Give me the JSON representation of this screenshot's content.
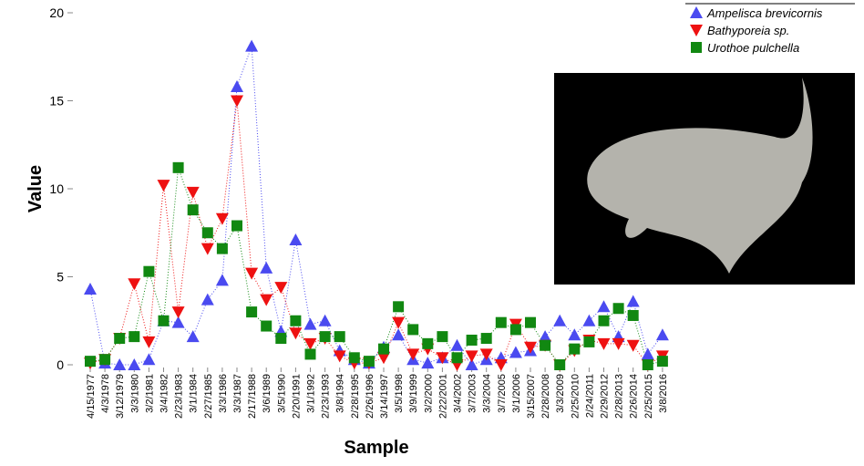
{
  "chart_data": {
    "type": "line",
    "x_label": "Sample",
    "y_label": "Value",
    "categories": [
      "4/15/1977",
      "4/3/1978",
      "3/12/1979",
      "3/3/1980",
      "3/2/1981",
      "3/4/1982",
      "2/23/1983",
      "3/1/1984",
      "2/27/1985",
      "3/3/1986",
      "3/3/1987",
      "2/17/1988",
      "3/6/1989",
      "3/5/1990",
      "2/20/1991",
      "3/1/1992",
      "2/23/1993",
      "3/8/1994",
      "2/28/1995",
      "2/26/1996",
      "3/14/1997",
      "3/5/1998",
      "3/9/1999",
      "3/2/2000",
      "2/22/2001",
      "3/4/2002",
      "3/7/2003",
      "3/3/2004",
      "3/7/2005",
      "3/1/2006",
      "3/15/2007",
      "2/28/2008",
      "3/3/2009",
      "2/25/2010",
      "2/24/2011",
      "2/29/2012",
      "2/28/2013",
      "2/26/2014",
      "2/25/2015",
      "3/8/2016"
    ],
    "series": [
      {
        "name": "Ampelisca brevicornis",
        "color": "#4a4af0",
        "marker": "triangle-up",
        "values": [
          4.3,
          0.1,
          0,
          0,
          0.3,
          2.5,
          2.4,
          1.6,
          3.7,
          4.8,
          15.8,
          18.1,
          5.5,
          1.9,
          7.1,
          2.3,
          2.5,
          0.8,
          0.3,
          0.1,
          1.0,
          1.7,
          0.3,
          0.1,
          0.4,
          1.1,
          0,
          0.3,
          0.4,
          0.7,
          0.8,
          1.6,
          2.5,
          1.7,
          2.5,
          3.3,
          1.6,
          3.6,
          0.6,
          1.7
        ]
      },
      {
        "name": "Bathyporeia sp.",
        "color": "#ee1111",
        "marker": "triangle-down",
        "values": [
          0.1,
          0.3,
          1.5,
          4.6,
          1.3,
          10.2,
          3.0,
          9.8,
          6.6,
          8.3,
          15.0,
          5.2,
          3.7,
          4.4,
          1.8,
          1.2,
          1.5,
          0.5,
          0.1,
          0.1,
          0.4,
          2.4,
          0.6,
          0.9,
          0.4,
          0,
          0.5,
          0.6,
          0,
          2.3,
          1.0,
          1.1,
          0,
          0.8,
          1.4,
          1.2,
          1.2,
          1.1,
          0,
          0.5
        ]
      },
      {
        "name": "Urothoe pulchella",
        "color": "#118811",
        "marker": "square",
        "values": [
          0.2,
          0.3,
          1.5,
          1.6,
          5.3,
          2.5,
          11.2,
          8.8,
          7.5,
          6.6,
          7.9,
          3.0,
          2.2,
          1.5,
          2.5,
          0.6,
          1.6,
          1.6,
          0.4,
          0.2,
          0.9,
          3.3,
          2.0,
          1.2,
          1.6,
          0.4,
          1.4,
          1.5,
          2.4,
          2.0,
          2.4,
          1.1,
          0,
          0.9,
          1.3,
          2.5,
          3.2,
          2.8,
          0,
          0.2
        ]
      }
    ],
    "ylim": [
      0,
      20
    ],
    "yticks": [
      0,
      5,
      10,
      15,
      20
    ],
    "legend": "top-right"
  }
}
